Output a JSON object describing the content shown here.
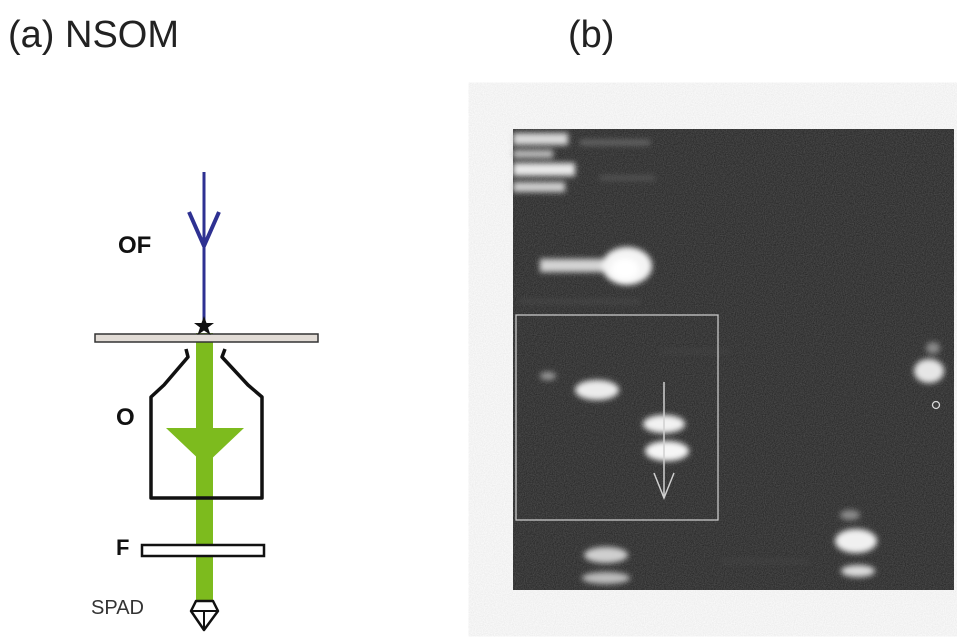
{
  "panel_a": {
    "title": "(a) NSOM",
    "labels": {
      "optical_fiber": "OF",
      "objective": "O",
      "filter": "F",
      "detector": "SPAD"
    }
  },
  "panel_b": {
    "title": "(b)"
  },
  "colors": {
    "incident_beam": "#2e3192",
    "emission_beam": "#7dbb1e",
    "outline": "#111111",
    "slide_fill": "#e2dcd6",
    "image_background": "#1f1f1f",
    "image_annotation": "#c8c8c8"
  },
  "icons": [
    "down-arrow-icon",
    "star-icon",
    "diode-icon"
  ]
}
